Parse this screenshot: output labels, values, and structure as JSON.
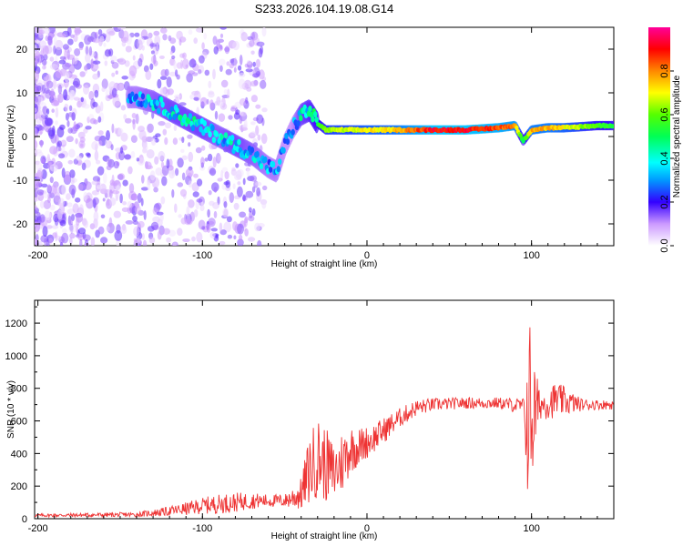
{
  "title": "S233.2026.104.19.08.G14",
  "colors": {
    "snr_line": "#ee3333",
    "axis": "#000000",
    "background": "#ffffff"
  },
  "chart_data": [
    {
      "name": "spectrogram",
      "type": "heatmap",
      "xlabel": "Height of straight line (km)",
      "ylabel": "Frequency (Hz)",
      "xlim": [
        -202,
        150
      ],
      "ylim": [
        -25,
        25
      ],
      "xticks": [
        -200,
        -100,
        0,
        100
      ],
      "yticks": [
        -20,
        -10,
        0,
        10,
        20
      ],
      "colorbar": {
        "label": "Normalized spectral amplitude",
        "range": [
          0,
          1
        ],
        "ticks": [
          0.0,
          0.2,
          0.4,
          0.6,
          0.8
        ]
      },
      "ridge": {
        "x": [
          -140,
          -130,
          -120,
          -110,
          -100,
          -90,
          -80,
          -70,
          -60,
          -55,
          -50,
          -45,
          -40,
          -35,
          -30,
          -25,
          -20,
          -10,
          0,
          10,
          20,
          40,
          60,
          80,
          90,
          95,
          100,
          110,
          120,
          140,
          150
        ],
        "y": [
          9,
          8,
          6,
          4,
          2,
          0,
          -2,
          -4,
          -7,
          -8,
          -2,
          2,
          5,
          6,
          3,
          1.5,
          1.5,
          1.5,
          1.5,
          1.5,
          1.5,
          1.5,
          1.5,
          2,
          2.5,
          -1,
          1.5,
          2,
          2,
          2.5,
          2.5
        ],
        "amplitude": [
          0.35,
          0.4,
          0.45,
          0.45,
          0.45,
          0.4,
          0.45,
          0.4,
          0.35,
          0.35,
          0.3,
          0.3,
          0.45,
          0.5,
          0.55,
          0.65,
          0.7,
          0.7,
          0.75,
          0.75,
          0.8,
          0.95,
          0.95,
          0.9,
          0.85,
          0.5,
          0.8,
          0.8,
          0.75,
          0.6,
          0.55
        ]
      }
    },
    {
      "name": "snr",
      "type": "line",
      "xlabel": "Height of straight line (km)",
      "ylabel": "SNR (10 * v/v)",
      "xlim": [
        -202,
        150
      ],
      "ylim": [
        0,
        1340
      ],
      "xticks": [
        -200,
        -100,
        0,
        100
      ],
      "yticks": [
        0,
        200,
        400,
        600,
        800,
        1000,
        1200
      ],
      "envelope": {
        "x": [
          -202,
          -140,
          -125,
          -110,
          -100,
          -90,
          -80,
          -70,
          -60,
          -50,
          -40,
          -35,
          -30,
          -25,
          -20,
          -15,
          -10,
          -5,
          0,
          5,
          10,
          20,
          30,
          40,
          60,
          80,
          95,
          98,
          100,
          102,
          105,
          110,
          115,
          120,
          130,
          140,
          150
        ],
        "y": [
          20,
          25,
          40,
          60,
          80,
          90,
          100,
          110,
          110,
          110,
          150,
          300,
          380,
          330,
          280,
          350,
          430,
          440,
          470,
          500,
          540,
          620,
          680,
          700,
          710,
          710,
          690,
          600,
          700,
          650,
          700,
          710,
          730,
          720,
          700,
          700,
          700
        ],
        "noise_amplitude": [
          10,
          15,
          25,
          40,
          50,
          60,
          60,
          50,
          40,
          40,
          100,
          220,
          250,
          230,
          180,
          200,
          150,
          120,
          100,
          90,
          80,
          60,
          50,
          40,
          35,
          35,
          50,
          550,
          650,
          300,
          90,
          100,
          110,
          90,
          40,
          30,
          30
        ]
      }
    }
  ]
}
